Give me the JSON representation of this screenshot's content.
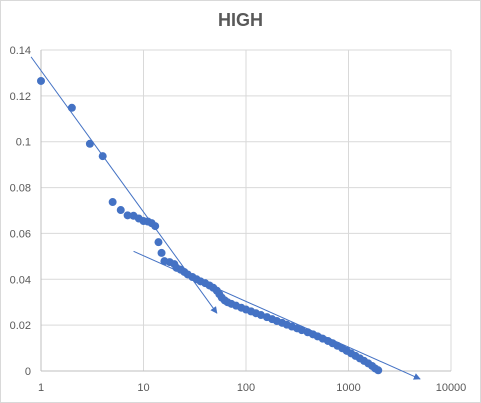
{
  "chart_data": {
    "type": "scatter",
    "title": "HIGH",
    "xscale": "log",
    "xlim": [
      1,
      10000
    ],
    "ylim": [
      0,
      0.14
    ],
    "xticks": [
      1,
      10,
      100,
      1000,
      10000
    ],
    "xtick_labels": [
      "1",
      "10",
      "100",
      "1000",
      "10000"
    ],
    "yticks": [
      0,
      0.02,
      0.04,
      0.06,
      0.08,
      0.1,
      0.12,
      0.14
    ],
    "ytick_labels": [
      "0",
      "0.02",
      "0.04",
      "0.06",
      "0.08",
      "0.1",
      "0.12",
      "0.14"
    ],
    "grid": true,
    "legend": "none",
    "colors": {
      "points": "#4472c4",
      "trendlines": "#4472c4",
      "grid": "#d9d9d9",
      "text": "#595959"
    },
    "series": [
      {
        "points": [
          [
            1,
            0.1265
          ],
          [
            2,
            0.1148
          ],
          [
            3,
            0.0991
          ],
          [
            4,
            0.0937
          ],
          [
            5,
            0.0737
          ],
          [
            6,
            0.0702
          ],
          [
            7,
            0.0679
          ],
          [
            8,
            0.0677
          ],
          [
            9,
            0.0665
          ],
          [
            10,
            0.0654
          ],
          [
            11,
            0.0652
          ],
          [
            12,
            0.0645
          ],
          [
            13,
            0.0632
          ],
          [
            14,
            0.0562
          ],
          [
            15,
            0.0515
          ],
          [
            16,
            0.0479
          ],
          [
            18,
            0.0475
          ],
          [
            20,
            0.0466
          ],
          [
            21,
            0.045
          ],
          [
            23,
            0.0442
          ],
          [
            25,
            0.0432
          ],
          [
            27,
            0.0421
          ],
          [
            30,
            0.041
          ],
          [
            33,
            0.04
          ],
          [
            36,
            0.0391
          ],
          [
            40,
            0.0383
          ],
          [
            44,
            0.0373
          ],
          [
            48,
            0.0363
          ],
          [
            52,
            0.035
          ],
          [
            55,
            0.0335
          ],
          [
            58,
            0.032
          ],
          [
            62,
            0.0308
          ],
          [
            66,
            0.03
          ],
          [
            72,
            0.0293
          ],
          [
            80,
            0.0285
          ],
          [
            90,
            0.0276
          ],
          [
            100,
            0.0268
          ],
          [
            112,
            0.026
          ],
          [
            125,
            0.0252
          ],
          [
            140,
            0.0244
          ],
          [
            160,
            0.0235
          ],
          [
            180,
            0.0226
          ],
          [
            200,
            0.0218
          ],
          [
            225,
            0.021
          ],
          [
            250,
            0.0202
          ],
          [
            280,
            0.0194
          ],
          [
            315,
            0.0186
          ],
          [
            350,
            0.0178
          ],
          [
            400,
            0.0169
          ],
          [
            450,
            0.016
          ],
          [
            500,
            0.0151
          ],
          [
            560,
            0.0141
          ],
          [
            630,
            0.0131
          ],
          [
            700,
            0.0121
          ],
          [
            780,
            0.011
          ],
          [
            870,
            0.0099
          ],
          [
            960,
            0.0088
          ],
          [
            1060,
            0.0077
          ],
          [
            1170,
            0.0066
          ],
          [
            1290,
            0.0055
          ],
          [
            1420,
            0.0044
          ],
          [
            1560,
            0.0033
          ],
          [
            1700,
            0.0022
          ],
          [
            1820,
            0.0011
          ],
          [
            1950,
            0.0003
          ]
        ]
      }
    ],
    "trendlines": [
      {
        "type": "log-linear",
        "from": [
          0.8,
          0.137
        ],
        "to": [
          52,
          0.0252
        ],
        "arrow": "end"
      },
      {
        "type": "log-linear",
        "from": [
          8,
          0.0522
        ],
        "to": [
          5000,
          -0.0035
        ],
        "arrow": "end"
      }
    ]
  }
}
